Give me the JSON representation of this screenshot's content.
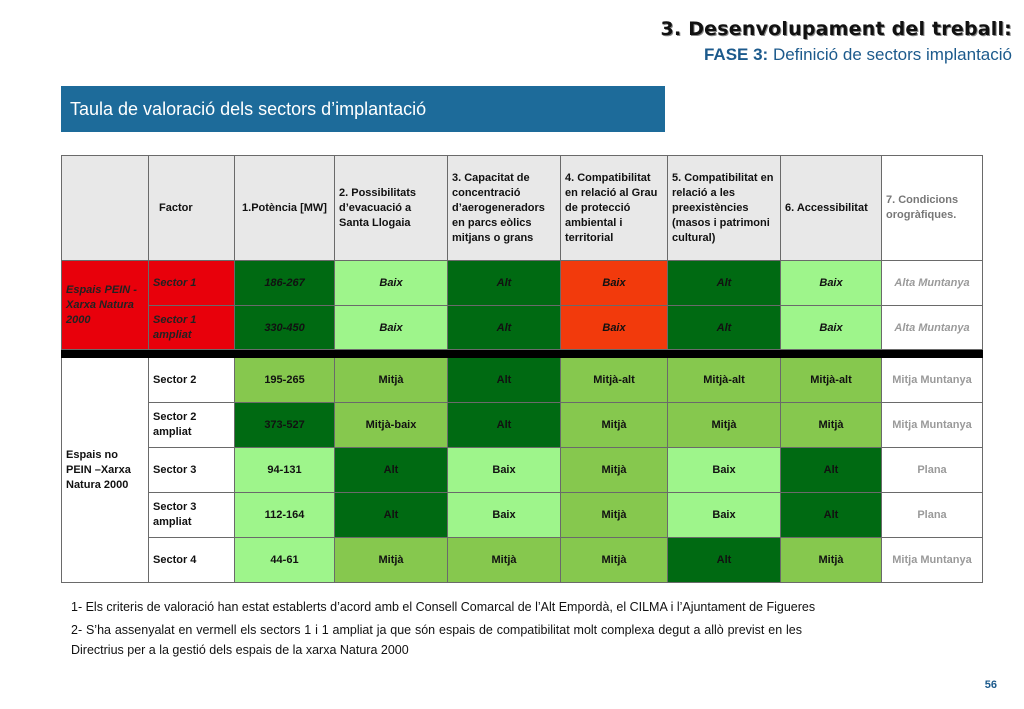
{
  "header": {
    "title": "3. Desenvolupament del treball:",
    "subtitle_phase": "FASE 3:",
    "subtitle_text": " Definició de sectors implantació"
  },
  "banner": {
    "title": "Taula de valoració dels sectors  d’implantació"
  },
  "table": {
    "columns": [
      "Factor",
      "1.Potència [MW]",
      "2. Possibilitats d’evacuació a Santa Llogaia",
      "3. Capacitat de concentració d’aerogeneradors en parcs eòlics mitjans o grans",
      "4. Compatibilitat en relació al Grau de protecció ambiental i territorial",
      "5. Compatibilitat en relació a les preexistències (masos i patrimoni cultural)",
      "6. Accessibilitat",
      "7. Condicions orogràfiques."
    ],
    "groups": [
      "Espais PEIN - Xarxa Natura 2000",
      "Espais no PEIN –Xarxa Natura 2000"
    ],
    "rows": [
      {
        "sector": "Sector 1",
        "values": [
          "186-267",
          "Baix",
          "Alt",
          "Baix",
          "Alt",
          "Baix",
          "Alta Muntanya"
        ]
      },
      {
        "sector": "Sector 1 ampliat",
        "values": [
          "330-450",
          "Baix",
          "Alt",
          "Baix",
          "Alt",
          "Baix",
          "Alta Muntanya"
        ]
      },
      {
        "sector": "Sector 2",
        "values": [
          "195-265",
          "Mitjà",
          "Alt",
          "Mitjà-alt",
          "Mitjà-alt",
          "Mitjà-alt",
          "Mitja Muntanya"
        ]
      },
      {
        "sector": "Sector 2 ampliat",
        "values": [
          "373-527",
          "Mitjà-baix",
          "Alt",
          "Mitjà",
          "Mitjà",
          "Mitjà",
          "Mitja Muntanya"
        ]
      },
      {
        "sector": "Sector 3",
        "values": [
          "94-131",
          "Alt",
          "Baix",
          "Mitjà",
          "Baix",
          "Alt",
          "Plana"
        ]
      },
      {
        "sector": "Sector 3 ampliat",
        "values": [
          "112-164",
          "Alt",
          "Baix",
          "Mitjà",
          "Baix",
          "Alt",
          "Plana"
        ]
      },
      {
        "sector": "Sector 4",
        "values": [
          "44-61",
          "Mitjà",
          "Mitjà",
          "Mitjà",
          "Alt",
          "Mitjà",
          "Mitja Muntanya"
        ]
      }
    ],
    "colors": {
      "dark_green": "#006a12",
      "mid_green": "#86c84e",
      "light_green": "#9ef58b",
      "red": "#f23a0c",
      "pein_red": "#e8000b"
    }
  },
  "notes": [
    "1- Els criteris de valoració han estat establerts d’acord amb el Consell Comarcal de l’Alt Empordà, el CILMA i l’Ajuntament de Figueres",
    "2- S’ha assenyalat en vermell els sectors 1 i 1 ampliat ja que són espais de compatibilitat molt complexa degut a allò previst en les Directrius per a la gestió dels espais de la xarxa Natura 2000"
  ],
  "page_number": "56"
}
